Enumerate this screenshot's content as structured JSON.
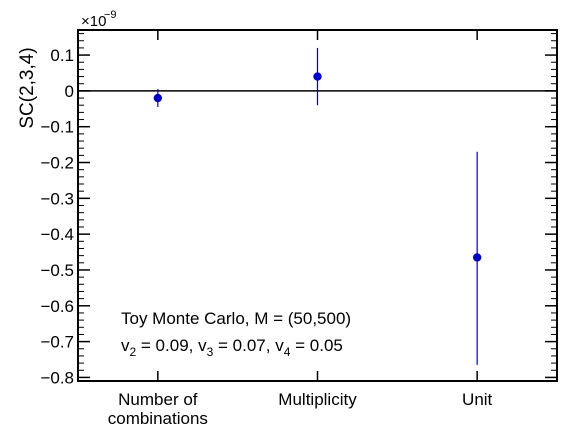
{
  "chart_data": {
    "type": "scatter",
    "ylabel": "SC(2,3,4)",
    "y_multiplier": "×10",
    "y_exponent": "−9",
    "categories": [
      "Number of\ncombinations",
      "Multiplicity",
      "Unit"
    ],
    "ylim": [
      -0.81,
      0.17
    ],
    "y_ticks": [
      0.1,
      0,
      -0.1,
      -0.2,
      -0.3,
      -0.4,
      -0.5,
      -0.6,
      -0.7,
      -0.8
    ],
    "y_tick_labels": [
      "0.1",
      "0",
      "−0.1",
      "−0.2",
      "−0.3",
      "−0.4",
      "−0.5",
      "−0.6",
      "−0.7",
      "−0.8"
    ],
    "zero_line": true,
    "grid": false,
    "points": [
      {
        "category": "Number of\ncombinations",
        "y": -0.02,
        "err_low": -0.045,
        "err_high": 0.005
      },
      {
        "category": "Multiplicity",
        "y": 0.04,
        "err_low": -0.04,
        "err_high": 0.12
      },
      {
        "category": "Unit",
        "y": -0.465,
        "err_low": -0.765,
        "err_high": -0.17
      }
    ],
    "annotation": {
      "line1": "Toy Monte Carlo, M = (50,500)",
      "line2_parts": [
        {
          "base": "v",
          "sub": "2",
          "rest": " = 0.09, "
        },
        {
          "base": "v",
          "sub": "3",
          "rest": " = 0.07, "
        },
        {
          "base": "v",
          "sub": "4",
          "rest": " = 0.05"
        }
      ]
    },
    "colors": {
      "marker": "#0000cc",
      "axis": "#000000"
    }
  }
}
